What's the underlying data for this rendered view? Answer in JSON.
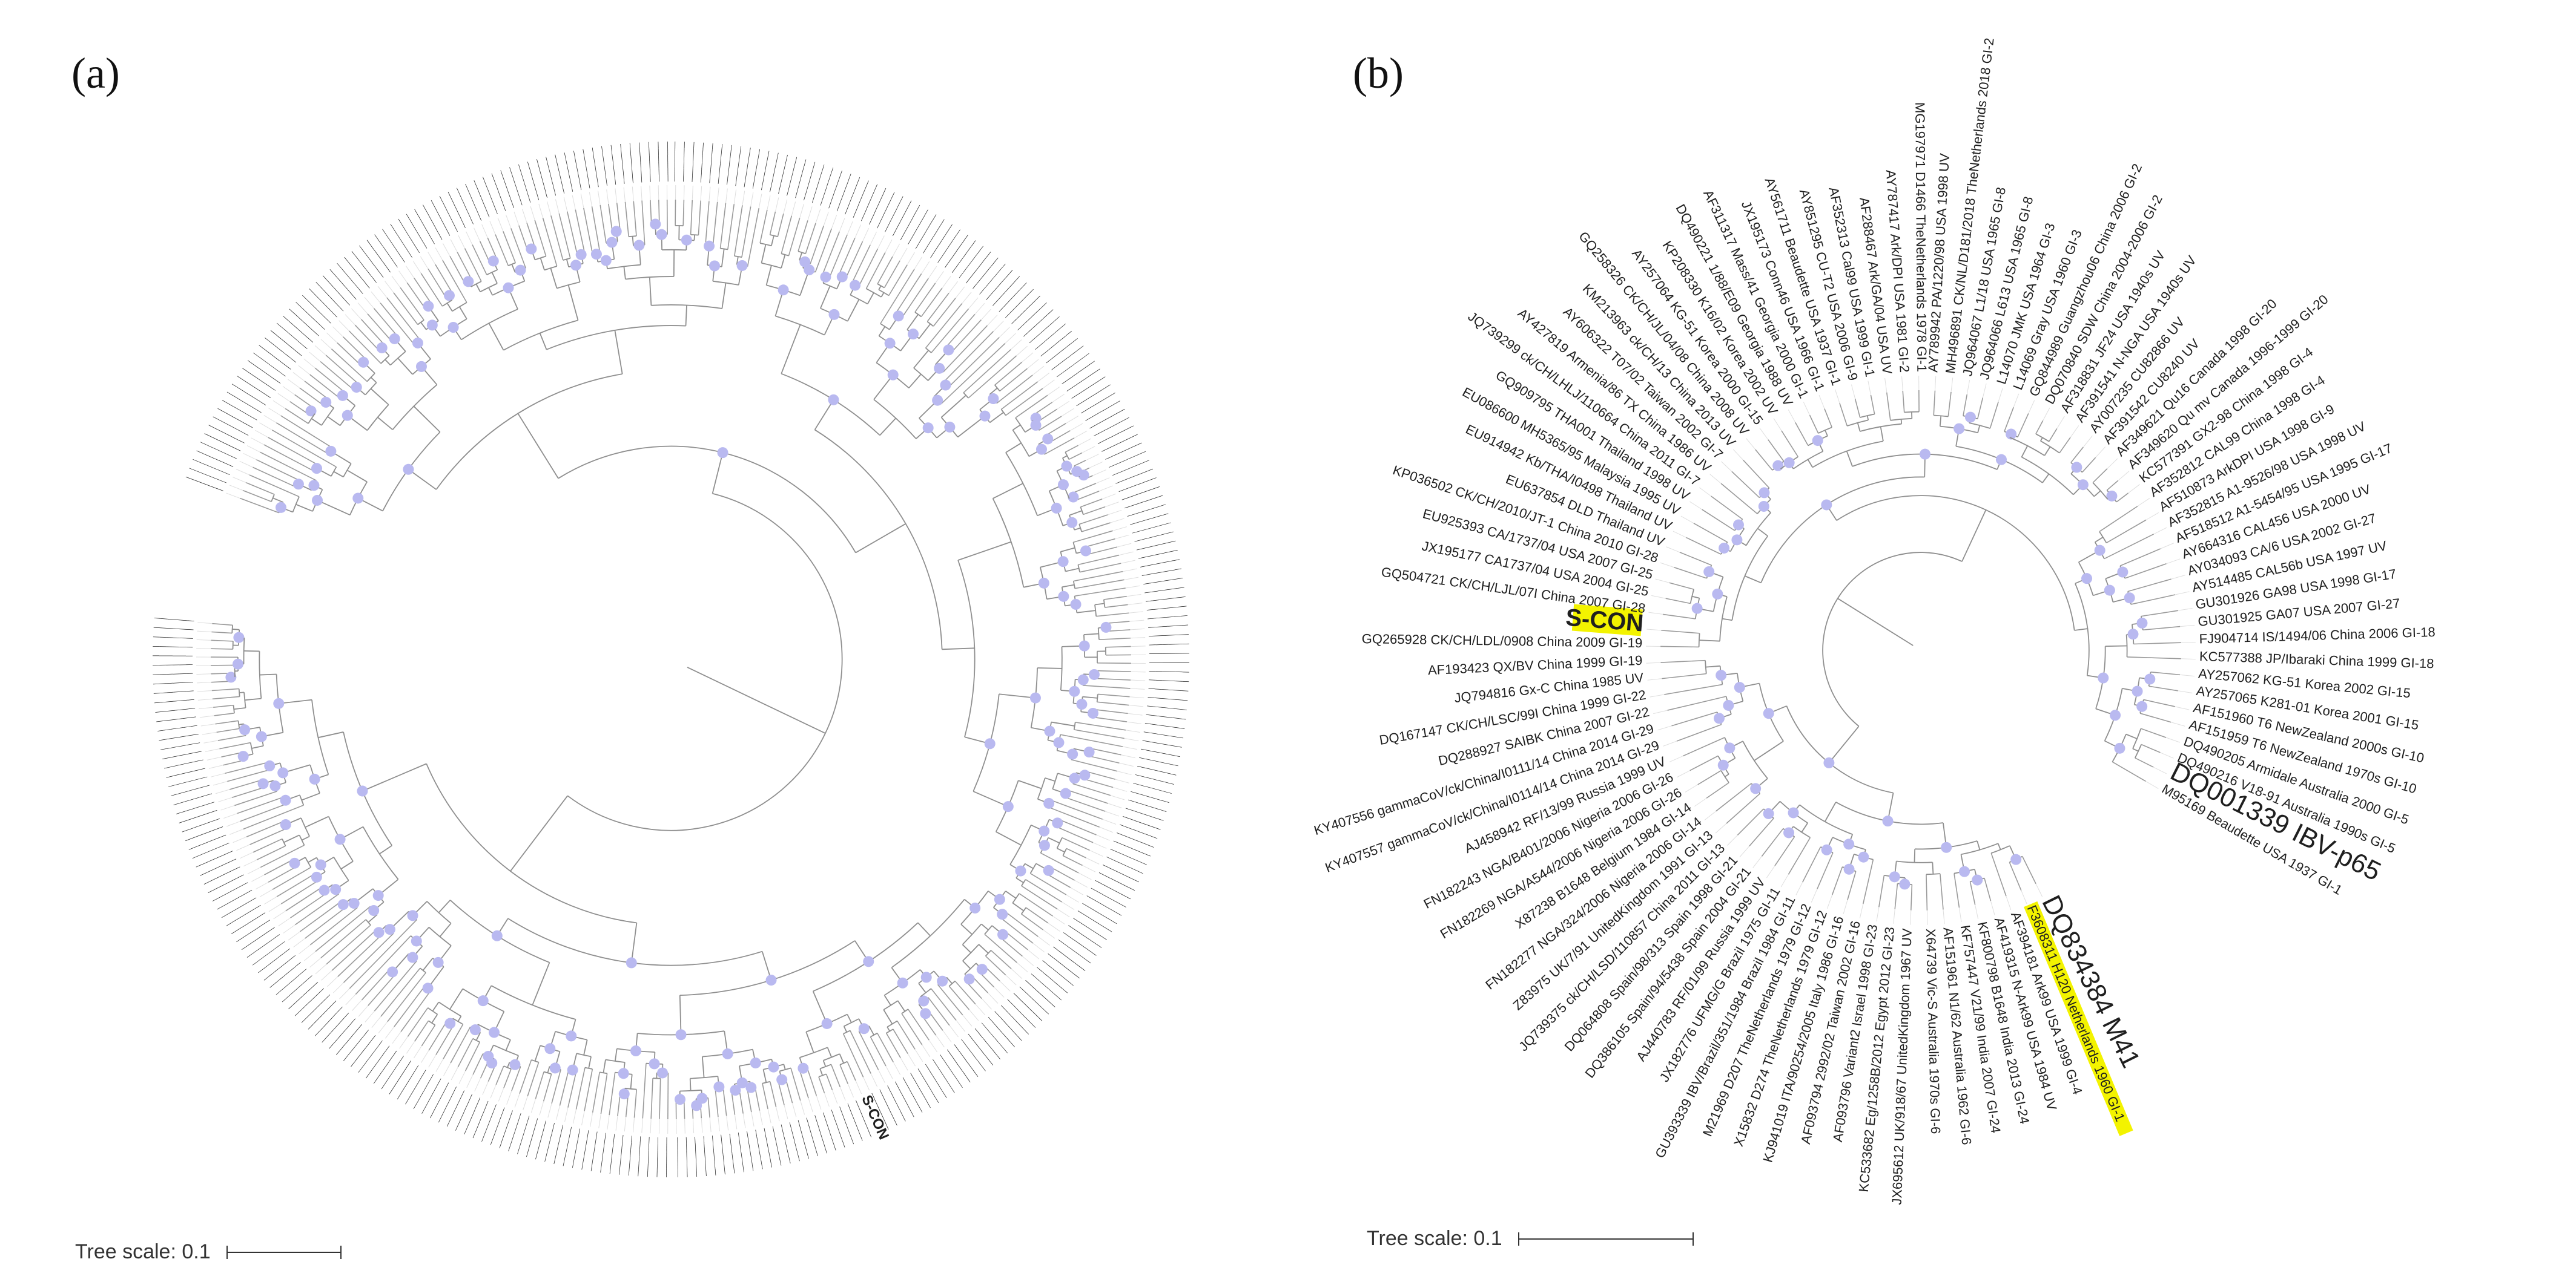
{
  "panel_a": {
    "label": "(a)",
    "scale_label": "Tree scale: 0.1",
    "highlight": "S-CON",
    "highlight_color": "#e8001c",
    "node_color": "#b9b9f0"
  },
  "panel_b": {
    "label": "(b)",
    "scale_label": "Tree scale: 0.1",
    "highlight_color": "#e8001c",
    "highlight_bg": "#f3f300",
    "node_color": "#b9b9f0",
    "leaves": [
      {
        "text": "DQ834384 M41",
        "style": "big"
      },
      {
        "text": "F3608311 H120 Netherlands 1960 GI-1",
        "style": "yellow"
      },
      {
        "text": "AF394181 Ark99 USA 1999 GI-4",
        "style": "normal"
      },
      {
        "text": "AF419315 N-Ark99 USA 1984 UV",
        "style": "normal"
      },
      {
        "text": "KF800798 B1648 India 2013 GI-24",
        "style": "normal"
      },
      {
        "text": "KF757447 V21/99 India 2007 GI-24",
        "style": "normal"
      },
      {
        "text": "AF151961 N1/62 Australia 1962 GI-6",
        "style": "normal"
      },
      {
        "text": "X64739 Vic-S Australia 1970s GI-6",
        "style": "normal"
      },
      {
        "text": "JX695612 UK/918/67 UnitedKingdom 1967 UV",
        "style": "normal"
      },
      {
        "text": "KC533682 Eg/1258B/2012 Egypt 2012 GI-23",
        "style": "normal"
      },
      {
        "text": "AF093796 Variant2 Israel 1998 GI-23",
        "style": "normal"
      },
      {
        "text": "AF093794 2992/02 Taiwan 2002 GI-16",
        "style": "normal"
      },
      {
        "text": "KJ941019 ITA/90254/2005 Italy 1986 GI-16",
        "style": "normal"
      },
      {
        "text": "X15832 D274 TheNetherlands 1979 GI-12",
        "style": "normal"
      },
      {
        "text": "M21969 D207 TheNetherlands 1979 GI-12",
        "style": "normal"
      },
      {
        "text": "GU393339 IBV/Brazil/351/1984 Brazil 1984 GI-11",
        "style": "normal"
      },
      {
        "text": "JX182776 UFMG/G Brazil 1975 GI-11",
        "style": "normal"
      },
      {
        "text": "AJ440783 RF/01/99 Russia 1999 UV",
        "style": "normal"
      },
      {
        "text": "DQ386105 Spain/94/5438 Spain 2004 GI-21",
        "style": "normal"
      },
      {
        "text": "DQ064808 Spain/98/313 Spain 1998 GI-21",
        "style": "normal"
      },
      {
        "text": "JQ739375 ck/CH/LSD/110857 China 2011 GI-13",
        "style": "normal"
      },
      {
        "text": "Z83975 UK/7/91 UnitedKingdom 1991 GI-13",
        "style": "normal"
      },
      {
        "text": "FN182277 NGA/324/2006 Nigeria 2006 GI-14",
        "style": "normal"
      },
      {
        "text": "X87238 B1648 Belgium 1984 GI-14",
        "style": "normal"
      },
      {
        "text": "FN182269 NGA/A544/2006 Nigeria 2006 GI-26",
        "style": "normal"
      },
      {
        "text": "FN182243 NGA/B401/2006 Nigeria 2006 GI-26",
        "style": "normal"
      },
      {
        "text": "AJ458942 RF/13/99 Russia 1999 UV",
        "style": "normal"
      },
      {
        "text": "KY407557 gammaCoV/ck/China/I0114/14 China 2014 GI-29",
        "style": "normal"
      },
      {
        "text": "KY407556 gammaCoV/ck/China/I0111/14 China 2014 GI-29",
        "style": "normal"
      },
      {
        "text": "DQ288927 SAIBK China 2007 GI-22",
        "style": "normal"
      },
      {
        "text": "DQ167147 CK/CH/LSC/99I China 1999 GI-22",
        "style": "normal"
      },
      {
        "text": "JQ794816 Gx-C China 1985 UV",
        "style": "normal"
      },
      {
        "text": "AF193423 QX/BV China 1999 GI-19",
        "style": "normal"
      },
      {
        "text": "GQ265928 CK/CH/LDL/0908 China 2009 GI-19",
        "style": "normal"
      },
      {
        "text": "S-CON",
        "style": "scon"
      },
      {
        "text": "GQ504721 CK/CH/LJL/07I China 2007 GI-28",
        "style": "normal"
      },
      {
        "text": "JX195177 CA1737/04 USA 2004 GI-25",
        "style": "normal"
      },
      {
        "text": "EU925393 CA/1737/04 USA 2007 GI-25",
        "style": "normal"
      },
      {
        "text": "KP036502 CK/CH/2010/JT-1 China 2010 GI-28",
        "style": "normal"
      },
      {
        "text": "EU637854 DLD Thailand UV",
        "style": "normal"
      },
      {
        "text": "EU914942 Kb/THA/I0498 Thailand UV",
        "style": "normal"
      },
      {
        "text": "EU086600 MH5365/95 Malaysia 1995 UV",
        "style": "normal"
      },
      {
        "text": "GQ909795 THA001 Thailand 1998 UV",
        "style": "normal"
      },
      {
        "text": "JQ739299 ck/CH/LHLJ/110664 China 2011 GI-7",
        "style": "normal"
      },
      {
        "text": "AY427819 Armenia/86 TX China 1986 UV",
        "style": "normal"
      },
      {
        "text": "AY606322 T07/02 Taiwan 2002 GI-7",
        "style": "normal"
      },
      {
        "text": "KM213963 ck/CH/13 China 2013 UV",
        "style": "normal"
      },
      {
        "text": "GQ258326 CK/CH/JL/04/08 China 2008 UV",
        "style": "normal"
      },
      {
        "text": "AY257064 KG-51 Korea 2000 GI-15",
        "style": "normal"
      },
      {
        "text": "KP208330 K16/02 Korea 2002 UV",
        "style": "normal"
      },
      {
        "text": "DQ490221 1/88/E09 Georgia 1988 UV",
        "style": "normal"
      },
      {
        "text": "AF311317 Mass/41 Georgia 2000 GI-1",
        "style": "normal"
      },
      {
        "text": "JX195173 Conn46 USA 1966 GI-1",
        "style": "normal"
      },
      {
        "text": "AY561711 Beaudette USA 1937 GI-1",
        "style": "normal"
      },
      {
        "text": "AY851295 CU-T2 USA 2006 GI-9",
        "style": "normal"
      },
      {
        "text": "AF352313 Cal99 USA 1999 GI-1",
        "style": "normal"
      },
      {
        "text": "AF288467 Ark/GA/04 USA UV",
        "style": "normal"
      },
      {
        "text": "AY787417 Ark/DPI USA 1981 GI-2",
        "style": "normal"
      },
      {
        "text": "MG197971 D1466 TheNetherlands 1978 GI-1",
        "style": "normal"
      },
      {
        "text": "AY789942 PA/1220/98 USA 1998 UV",
        "style": "normal"
      },
      {
        "text": "MH496891 CK/NL/D181/2018 TheNetherlands 2018 GI-2",
        "style": "normal"
      },
      {
        "text": "JQ964067 L1/18 USA 1965 GI-8",
        "style": "normal"
      },
      {
        "text": "JQ964066 L613 USA 1965 GI-8",
        "style": "normal"
      },
      {
        "text": "L14070 JMK USA 1964 GI-3",
        "style": "normal"
      },
      {
        "text": "L14069 Gray USA 1960 GI-3",
        "style": "normal"
      },
      {
        "text": "GQ844989 Guangzhou06 China 2006 GI-2",
        "style": "normal"
      },
      {
        "text": "DQ070840 SDW China 2004-2006 GI-2",
        "style": "normal"
      },
      {
        "text": "AF318831 JF24 USA 1940s UV",
        "style": "normal"
      },
      {
        "text": "AF391541 N-NGA USA 1940s UV",
        "style": "normal"
      },
      {
        "text": "AY007235 CU82866 UV",
        "style": "normal"
      },
      {
        "text": "AF391542 CU8240 UV",
        "style": "normal"
      },
      {
        "text": "AF349621 Qu16 Canada 1998 GI-20",
        "style": "normal"
      },
      {
        "text": "AF349620 Qu mv Canada 1996-1999 GI-20",
        "style": "normal"
      },
      {
        "text": "KC577391 GX2-98 China 1998 GI-4",
        "style": "normal"
      },
      {
        "text": "AF352812 CAL99 China 1998 GI-4",
        "style": "normal"
      },
      {
        "text": "AF510873 ArkDPI USA 1998 GI-9",
        "style": "normal"
      },
      {
        "text": "AF352815 A1-9526/98 USA 1998 UV",
        "style": "normal"
      },
      {
        "text": "AF518512 A1-5454/95 USA 1995 GI-17",
        "style": "normal"
      },
      {
        "text": "AY664316 CAL456 USA 2000 UV",
        "style": "normal"
      },
      {
        "text": "AY034093 CA/6 USA 2002 GI-27",
        "style": "normal"
      },
      {
        "text": "AY514485 CAL56b USA 1997 UV",
        "style": "normal"
      },
      {
        "text": "GU301926 GA98 USA 1998 GI-17",
        "style": "normal"
      },
      {
        "text": "GU301925 GA07 USA 2007 GI-27",
        "style": "normal"
      },
      {
        "text": "FJ904714 IS/1494/06 China 2006 GI-18",
        "style": "normal"
      },
      {
        "text": "KC577388 JP/Ibaraki China 1999 GI-18",
        "style": "normal"
      },
      {
        "text": "AY257062 KG-51 Korea 2002 GI-15",
        "style": "normal"
      },
      {
        "text": "AY257065 K281-01 Korea 2001 GI-15",
        "style": "normal"
      },
      {
        "text": "AF151960 T6 NewZealand 2000s GI-10",
        "style": "normal"
      },
      {
        "text": "AF151959 T6 NewZealand 1970s GI-10",
        "style": "normal"
      },
      {
        "text": "DQ490205 Armidale Australia 2000 GI-5",
        "style": "normal"
      },
      {
        "text": "DQ490216 V18-91 Australia 1990s GI-5",
        "style": "normal"
      },
      {
        "text": "DQ001339 IBV-p65",
        "style": "big"
      },
      {
        "text": "M95169 Beaudette USA 1937 GI-1",
        "style": "normal"
      }
    ]
  }
}
